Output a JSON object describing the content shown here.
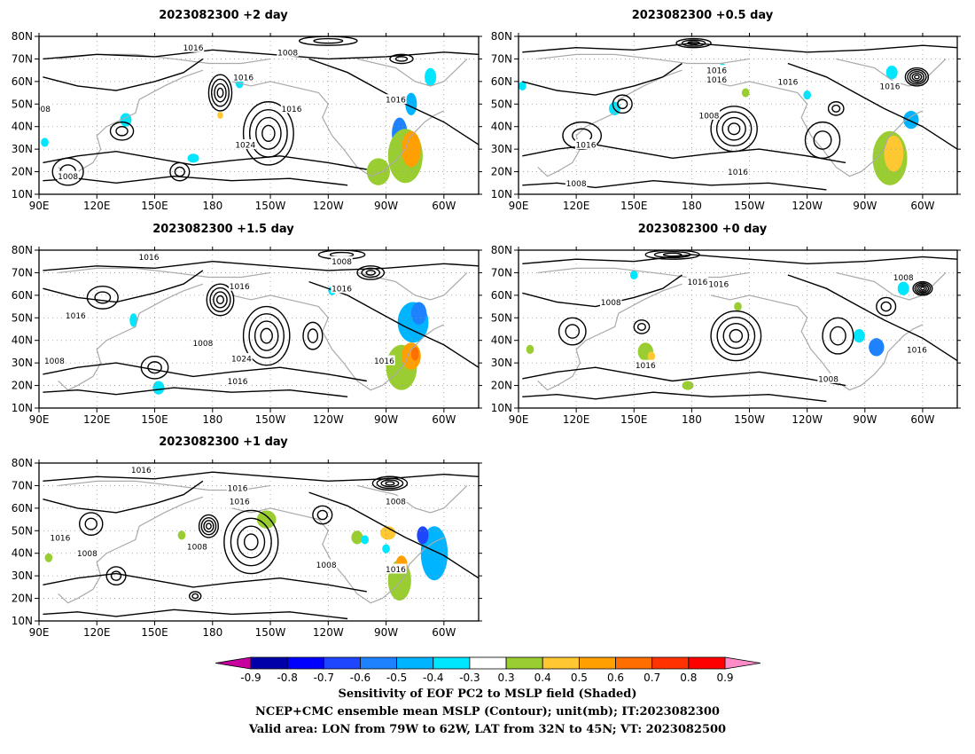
{
  "chart_data": [
    {
      "type": "contour_map",
      "title": "2023082300  +2 day",
      "lon_ticks": [
        "90E",
        "120E",
        "150E",
        "180",
        "150W",
        "120W",
        "90W",
        "60W"
      ],
      "lat_ticks": [
        "80N",
        "70N",
        "60N",
        "50N",
        "40N",
        "30N",
        "20N",
        "10N"
      ],
      "contour_labels": [
        {
          "text": "1016",
          "lon": 170,
          "lat": 75
        },
        {
          "text": "1008",
          "lon": 219,
          "lat": 73
        },
        {
          "text": "1016",
          "lon": 196,
          "lat": 62
        },
        {
          "text": "1016",
          "lon": 275,
          "lat": 52
        },
        {
          "text": "1016",
          "lon": 221,
          "lat": 48
        },
        {
          "text": "1024",
          "lon": 197,
          "lat": 32
        },
        {
          "text": "1008",
          "lon": 105,
          "lat": 18
        },
        {
          "text": "008",
          "lon": 92,
          "lat": 48
        }
      ],
      "shading": [
        {
          "lon": 277,
          "lat": 37,
          "rx": 4,
          "ry": 7,
          "value": -0.5
        },
        {
          "lon": 283,
          "lat": 50,
          "rx": 3,
          "ry": 5,
          "value": -0.4
        },
        {
          "lon": 293,
          "lat": 62,
          "rx": 3,
          "ry": 4,
          "value": -0.3
        },
        {
          "lon": 280,
          "lat": 27,
          "rx": 9,
          "ry": 12,
          "value": 0.4
        },
        {
          "lon": 283,
          "lat": 30,
          "rx": 5,
          "ry": 8,
          "value": 0.6
        },
        {
          "lon": 266,
          "lat": 20,
          "rx": 6,
          "ry": 6,
          "value": 0.4
        },
        {
          "lon": 184,
          "lat": 45,
          "rx": 1.5,
          "ry": 1.5,
          "value": 0.5
        },
        {
          "lon": 135,
          "lat": 43,
          "rx": 3,
          "ry": 3,
          "value": -0.3
        },
        {
          "lon": 93,
          "lat": 33,
          "rx": 2,
          "ry": 2,
          "value": -0.3
        },
        {
          "lon": 170,
          "lat": 26,
          "rx": 3,
          "ry": 2,
          "value": -0.3
        },
        {
          "lon": 194,
          "lat": 59,
          "rx": 2,
          "ry": 2,
          "value": -0.3
        }
      ]
    },
    {
      "type": "contour_map",
      "title": "2023082300  +0.5 day",
      "lon_ticks": [
        "90E",
        "120E",
        "150E",
        "180",
        "150W",
        "120W",
        "90W",
        "60W"
      ],
      "lat_ticks": [
        "80N",
        "70N",
        "60N",
        "50N",
        "40N",
        "30N",
        "20N",
        "10N"
      ],
      "contour_labels": [
        {
          "text": "1016",
          "lon": 193,
          "lat": 65
        },
        {
          "text": "1016",
          "lon": 193,
          "lat": 61
        },
        {
          "text": "1016",
          "lon": 230,
          "lat": 60
        },
        {
          "text": "1016",
          "lon": 283,
          "lat": 58
        },
        {
          "text": "1008",
          "lon": 189,
          "lat": 45
        },
        {
          "text": "1016",
          "lon": 125,
          "lat": 32
        },
        {
          "text": "1016",
          "lon": 204,
          "lat": 20
        },
        {
          "text": "1008",
          "lon": 120,
          "lat": 15
        }
      ],
      "shading": [
        {
          "lon": 283,
          "lat": 26,
          "rx": 9,
          "ry": 12,
          "value": 0.4
        },
        {
          "lon": 285,
          "lat": 28,
          "rx": 5,
          "ry": 8,
          "value": 0.5
        },
        {
          "lon": 294,
          "lat": 43,
          "rx": 4,
          "ry": 4,
          "value": -0.4
        },
        {
          "lon": 284,
          "lat": 64,
          "rx": 3,
          "ry": 3,
          "value": -0.3
        },
        {
          "lon": 92,
          "lat": 58,
          "rx": 2,
          "ry": 2,
          "value": -0.3
        },
        {
          "lon": 240,
          "lat": 54,
          "rx": 2,
          "ry": 2,
          "value": -0.3
        },
        {
          "lon": 140,
          "lat": 48,
          "rx": 3,
          "ry": 3,
          "value": -0.3
        },
        {
          "lon": 196,
          "lat": 66,
          "rx": 2,
          "ry": 2,
          "value": -0.3
        },
        {
          "lon": 208,
          "lat": 55,
          "rx": 2,
          "ry": 2,
          "value": 0.4
        }
      ]
    },
    {
      "type": "contour_map",
      "title": "2023082300  +1.5 day",
      "lon_ticks": [
        "90E",
        "120E",
        "150E",
        "180",
        "150W",
        "120W",
        "90W",
        "60W"
      ],
      "lat_ticks": [
        "80N",
        "70N",
        "60N",
        "50N",
        "40N",
        "30N",
        "20N",
        "10N"
      ],
      "contour_labels": [
        {
          "text": "1016",
          "lon": 147,
          "lat": 77
        },
        {
          "text": "1008",
          "lon": 247,
          "lat": 75
        },
        {
          "text": "1016",
          "lon": 194,
          "lat": 64
        },
        {
          "text": "1016",
          "lon": 247,
          "lat": 63
        },
        {
          "text": "1016",
          "lon": 109,
          "lat": 51
        },
        {
          "text": "1008",
          "lon": 175,
          "lat": 39
        },
        {
          "text": "1024",
          "lon": 195,
          "lat": 32
        },
        {
          "text": "1016",
          "lon": 193,
          "lat": 22
        },
        {
          "text": "1016",
          "lon": 269,
          "lat": 31
        },
        {
          "text": "1008",
          "lon": 98,
          "lat": 31
        }
      ],
      "shading": [
        {
          "lon": 284,
          "lat": 48,
          "rx": 8,
          "ry": 9,
          "value": -0.4
        },
        {
          "lon": 287,
          "lat": 52,
          "rx": 4,
          "ry": 5,
          "value": -0.5
        },
        {
          "lon": 278,
          "lat": 28,
          "rx": 8,
          "ry": 10,
          "value": 0.4
        },
        {
          "lon": 283,
          "lat": 33,
          "rx": 5,
          "ry": 6,
          "value": 0.6
        },
        {
          "lon": 285,
          "lat": 34,
          "rx": 2,
          "ry": 3,
          "value": 0.7
        },
        {
          "lon": 152,
          "lat": 19,
          "rx": 3,
          "ry": 3,
          "value": -0.3
        },
        {
          "lon": 139,
          "lat": 49,
          "rx": 2,
          "ry": 3,
          "value": -0.3
        },
        {
          "lon": 242,
          "lat": 62,
          "rx": 2,
          "ry": 2,
          "value": -0.3
        }
      ]
    },
    {
      "type": "contour_map",
      "title": "2023082300  +0 day",
      "lon_ticks": [
        "90E",
        "120E",
        "150E",
        "180",
        "150W",
        "120W",
        "90W",
        "60W"
      ],
      "lat_ticks": [
        "80N",
        "70N",
        "60N",
        "50N",
        "40N",
        "30N",
        "20N",
        "10N"
      ],
      "contour_labels": [
        {
          "text": "1016",
          "lon": 183,
          "lat": 66
        },
        {
          "text": "1016",
          "lon": 194,
          "lat": 65
        },
        {
          "text": "1008",
          "lon": 290,
          "lat": 68
        },
        {
          "text": "1008",
          "lon": 138,
          "lat": 57
        },
        {
          "text": "1016",
          "lon": 156,
          "lat": 29
        },
        {
          "text": "1016",
          "lon": 297,
          "lat": 36
        },
        {
          "text": "1008",
          "lon": 251,
          "lat": 23
        }
      ],
      "shading": [
        {
          "lon": 276,
          "lat": 37,
          "rx": 4,
          "ry": 4,
          "value": -0.5
        },
        {
          "lon": 267,
          "lat": 42,
          "rx": 3,
          "ry": 3,
          "value": -0.3
        },
        {
          "lon": 290,
          "lat": 63,
          "rx": 3,
          "ry": 3,
          "value": -0.3
        },
        {
          "lon": 156,
          "lat": 35,
          "rx": 4,
          "ry": 4,
          "value": 0.4
        },
        {
          "lon": 159,
          "lat": 33,
          "rx": 2,
          "ry": 2,
          "value": 0.5
        },
        {
          "lon": 178,
          "lat": 20,
          "rx": 3,
          "ry": 2,
          "value": 0.4
        },
        {
          "lon": 204,
          "lat": 55,
          "rx": 2,
          "ry": 2,
          "value": 0.4
        },
        {
          "lon": 96,
          "lat": 36,
          "rx": 2,
          "ry": 2,
          "value": 0.4
        },
        {
          "lon": 150,
          "lat": 69,
          "rx": 2,
          "ry": 2,
          "value": -0.3
        }
      ]
    },
    {
      "type": "contour_map",
      "title": "2023082300  +1 day",
      "lon_ticks": [
        "90E",
        "120E",
        "150E",
        "180",
        "150W",
        "120W",
        "90W",
        "60W"
      ],
      "lat_ticks": [
        "80N",
        "70N",
        "60N",
        "50N",
        "40N",
        "30N",
        "20N",
        "10N"
      ],
      "contour_labels": [
        {
          "text": "1016",
          "lon": 143,
          "lat": 77
        },
        {
          "text": "1016",
          "lon": 193,
          "lat": 69
        },
        {
          "text": "1016",
          "lon": 194,
          "lat": 63
        },
        {
          "text": "1008",
          "lon": 275,
          "lat": 63
        },
        {
          "text": "1016",
          "lon": 101,
          "lat": 47
        },
        {
          "text": "1008",
          "lon": 115,
          "lat": 40
        },
        {
          "text": "1008",
          "lon": 172,
          "lat": 43
        },
        {
          "text": "1008",
          "lon": 239,
          "lat": 35
        },
        {
          "text": "1016",
          "lon": 275,
          "lat": 33
        }
      ],
      "shading": [
        {
          "lon": 295,
          "lat": 40,
          "rx": 7,
          "ry": 12,
          "value": -0.4
        },
        {
          "lon": 289,
          "lat": 48,
          "rx": 3,
          "ry": 4,
          "value": -0.6
        },
        {
          "lon": 277,
          "lat": 28,
          "rx": 6,
          "ry": 9,
          "value": 0.4
        },
        {
          "lon": 278,
          "lat": 35,
          "rx": 3,
          "ry": 4,
          "value": 0.6
        },
        {
          "lon": 208,
          "lat": 55,
          "rx": 5,
          "ry": 4,
          "value": 0.4
        },
        {
          "lon": 271,
          "lat": 49,
          "rx": 4,
          "ry": 3,
          "value": 0.5
        },
        {
          "lon": 255,
          "lat": 47,
          "rx": 3,
          "ry": 3,
          "value": 0.4
        },
        {
          "lon": 259,
          "lat": 46,
          "rx": 2,
          "ry": 2,
          "value": -0.3
        },
        {
          "lon": 270,
          "lat": 42,
          "rx": 2,
          "ry": 2,
          "value": -0.3
        },
        {
          "lon": 164,
          "lat": 48,
          "rx": 2,
          "ry": 2,
          "value": 0.4
        },
        {
          "lon": 95,
          "lat": 38,
          "rx": 2,
          "ry": 2,
          "value": 0.4
        }
      ]
    }
  ],
  "colorbar": {
    "tick_labels": [
      "-0.9",
      "-0.8",
      "-0.7",
      "-0.6",
      "-0.5",
      "-0.4",
      "-0.3",
      "0.3",
      "0.4",
      "0.5",
      "0.6",
      "0.7",
      "0.8",
      "0.9"
    ],
    "colors": [
      "#0000a8",
      "#0000ff",
      "#1e46ff",
      "#1e82ff",
      "#00b4ff",
      "#00e6ff",
      "#ffffff",
      "#9acd32",
      "#ffc832",
      "#ffa000",
      "#ff6e00",
      "#ff3200",
      "#ff0000"
    ],
    "lower_extend_color": "#c800a0",
    "upper_extend_color": "#ff8cc8"
  },
  "palette": {
    "-0.3": "#00e6ff",
    "-0.4": "#00b4ff",
    "-0.5": "#1e82ff",
    "-0.6": "#1e46ff",
    "0.4": "#9acd32",
    "0.5": "#ffc832",
    "0.6": "#ffa000",
    "0.7": "#ff6e00"
  },
  "captions": {
    "line1": "Sensitivity of EOF PC2 to MSLP field (Shaded)",
    "line2": "NCEP+CMC ensemble mean MSLP (Contour); unit(mb); IT:2023082300",
    "line3": "Valid area: LON from 79W to 62W, LAT from 32N to 45N; VT: 2023082500"
  }
}
